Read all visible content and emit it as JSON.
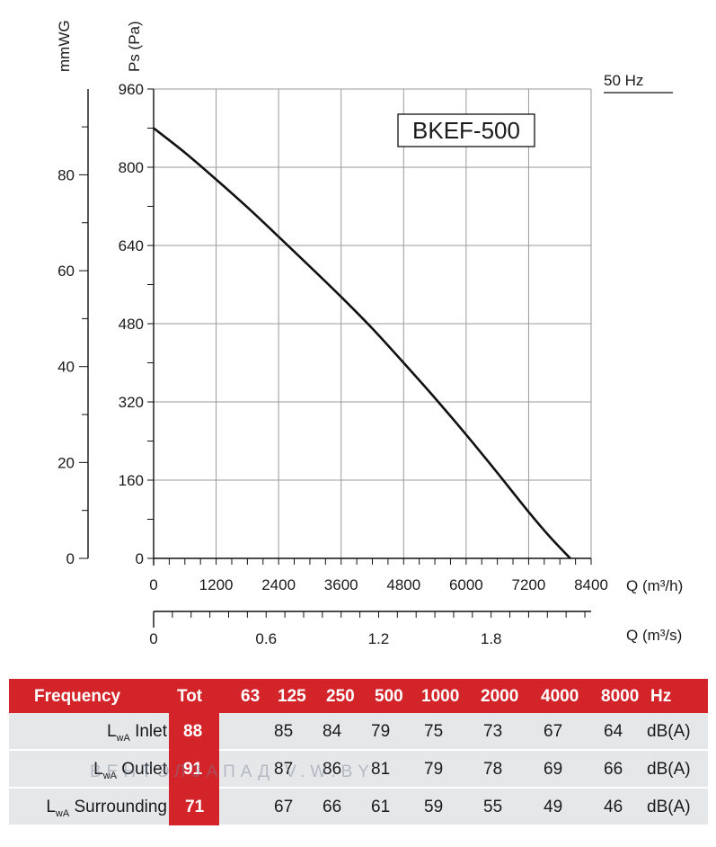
{
  "chart_data": {
    "type": "line",
    "title": "BKEF-500",
    "frequency_label": "50 Hz",
    "ylabel_left": "mmWG",
    "ylabel": "Ps (Pa)",
    "xlabel": "Q (m³/h)",
    "xlabel_secondary": "Q (m³/s)",
    "xlim": [
      0,
      8400
    ],
    "ylim": [
      0,
      960
    ],
    "x_ticks": [
      "0",
      "1200",
      "2400",
      "3600",
      "4800",
      "6000",
      "7200",
      "8400"
    ],
    "y_ticks": [
      "0",
      "160",
      "320",
      "480",
      "640",
      "800",
      "960"
    ],
    "mmwg_ticks": [
      "0",
      "20",
      "40",
      "60",
      "80"
    ],
    "m3s_ticks": [
      "0",
      "0.6",
      "1.2",
      "1.8"
    ],
    "grid": true,
    "series": [
      {
        "x": [
          0,
          600,
          1200,
          1800,
          2400,
          3000,
          3600,
          4200,
          4800,
          5400,
          6000,
          6600,
          7200,
          7600,
          8000
        ],
        "y": [
          880,
          830,
          775,
          718,
          658,
          597,
          535,
          470,
          400,
          328,
          253,
          175,
          95,
          45,
          0
        ]
      }
    ]
  },
  "table": {
    "header": {
      "label": "Frequency",
      "tot": "Tot",
      "bands": [
        "63",
        "125",
        "250",
        "500",
        "1000",
        "2000",
        "4000",
        "8000"
      ],
      "unit": "Hz"
    },
    "rows": [
      {
        "l": "L",
        "sub": "wA",
        "label": " Inlet",
        "tot": "88",
        "values": [
          "",
          "85",
          "84",
          "79",
          "75",
          "73",
          "67",
          "64"
        ],
        "unit": "dB(A)"
      },
      {
        "l": "L",
        "sub": "wA",
        "label": " Outlet",
        "tot": "91",
        "values": [
          "",
          "87",
          "86",
          "81",
          "79",
          "78",
          "69",
          "66"
        ],
        "unit": "dB(A)"
      },
      {
        "l": "L",
        "sub": "wA",
        "label": " Surrounding",
        "tot": "71",
        "values": [
          "",
          "67",
          "66",
          "61",
          "59",
          "55",
          "49",
          "46"
        ],
        "unit": "dB(A)"
      }
    ]
  },
  "watermark": "ВЕНТЭЛЗАПАД   V.W.BY"
}
